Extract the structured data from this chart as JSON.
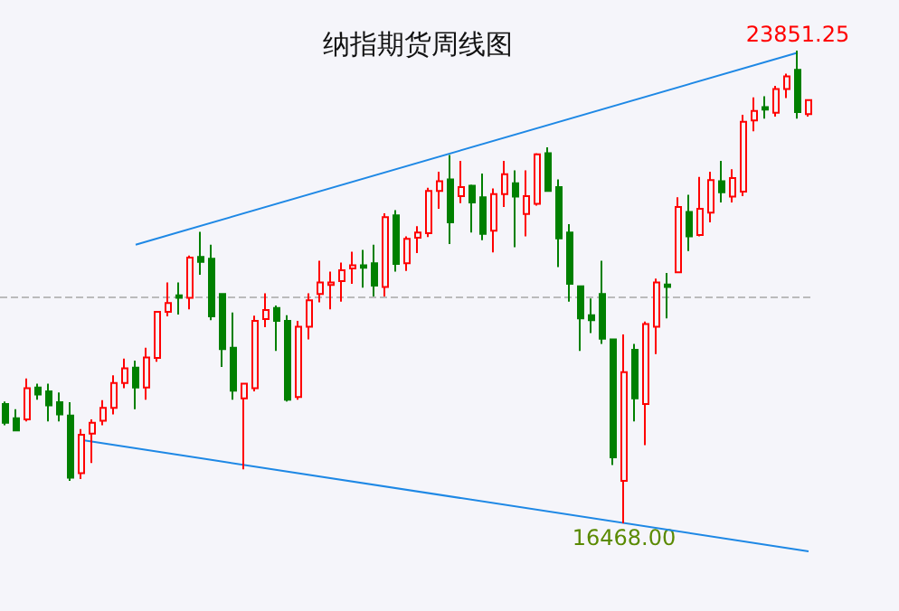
{
  "chart_data": {
    "type": "candlestick",
    "title": "纳指期货周线图",
    "categories": [
      null,
      null,
      null,
      null,
      null,
      null,
      null,
      null,
      null,
      null,
      null,
      null,
      null,
      null,
      null,
      null,
      null,
      null,
      null,
      null,
      null,
      null,
      null,
      null,
      null,
      null,
      null,
      null,
      null,
      null,
      null,
      null,
      null,
      null,
      null,
      null,
      null,
      null,
      null,
      null,
      null,
      null,
      null,
      null,
      null,
      null,
      null,
      null,
      null,
      null,
      null,
      null,
      null,
      null,
      null,
      null,
      null,
      null,
      null,
      null,
      null,
      null,
      null,
      null,
      null,
      null,
      null,
      null,
      null,
      null,
      null,
      null,
      null,
      null,
      null
    ],
    "ohlc": [
      [
        18330,
        18370,
        18000,
        18040
      ],
      [
        18110,
        18250,
        17920,
        17920
      ],
      [
        18090,
        18730,
        18060,
        18580
      ],
      [
        18590,
        18650,
        18400,
        18480
      ],
      [
        18530,
        18650,
        18060,
        18310
      ],
      [
        18360,
        18510,
        18060,
        18170
      ],
      [
        18150,
        18360,
        17130,
        17180
      ],
      [
        17250,
        17940,
        17160,
        17850
      ],
      [
        17870,
        18090,
        17410,
        18040
      ],
      [
        18070,
        18390,
        18000,
        18270
      ],
      [
        18270,
        18780,
        18170,
        18660
      ],
      [
        18660,
        19040,
        18580,
        18890
      ],
      [
        18900,
        19010,
        18250,
        18590
      ],
      [
        18590,
        19210,
        18400,
        19060
      ],
      [
        19050,
        19770,
        18990,
        19770
      ],
      [
        19770,
        20230,
        19700,
        19910
      ],
      [
        20030,
        20230,
        19730,
        19990
      ],
      [
        19990,
        20650,
        19810,
        20620
      ],
      [
        20630,
        21020,
        20350,
        20550
      ],
      [
        20600,
        20820,
        19640,
        19700
      ],
      [
        20050,
        20050,
        18910,
        19190
      ],
      [
        19210,
        19760,
        18400,
        18540
      ],
      [
        18420,
        18650,
        17310,
        18650
      ],
      [
        18580,
        19710,
        18530,
        19630
      ],
      [
        19660,
        20060,
        19530,
        19800
      ],
      [
        19830,
        19870,
        19160,
        19630
      ],
      [
        19630,
        19720,
        18370,
        18400
      ],
      [
        18440,
        19630,
        18400,
        19540
      ],
      [
        19540,
        20060,
        19340,
        19950
      ],
      [
        20050,
        20570,
        19920,
        20230
      ],
      [
        20190,
        20400,
        19810,
        20230
      ],
      [
        20250,
        20540,
        19930,
        20420
      ],
      [
        20450,
        20710,
        20210,
        20500
      ],
      [
        20500,
        20740,
        20150,
        20460
      ],
      [
        20530,
        20820,
        20010,
        20180
      ],
      [
        20160,
        21310,
        20010,
        21250
      ],
      [
        21280,
        21360,
        20400,
        20520
      ],
      [
        20530,
        20950,
        20410,
        20910
      ],
      [
        20930,
        21110,
        20690,
        21010
      ],
      [
        21000,
        21710,
        20940,
        21660
      ],
      [
        21660,
        21960,
        21380,
        21810
      ],
      [
        21840,
        22220,
        20830,
        21170
      ],
      [
        21580,
        22130,
        21470,
        21720
      ],
      [
        21740,
        21760,
        21010,
        21480
      ],
      [
        21560,
        21930,
        20890,
        20990
      ],
      [
        21040,
        21700,
        20700,
        21610
      ],
      [
        21610,
        22130,
        21410,
        21920
      ],
      [
        21780,
        21980,
        20780,
        21570
      ],
      [
        21300,
        21980,
        20950,
        21580
      ],
      [
        21460,
        22250,
        21430,
        22230
      ],
      [
        22250,
        22340,
        21660,
        21660
      ],
      [
        21720,
        21840,
        20470,
        20920
      ],
      [
        21010,
        21140,
        19930,
        20210
      ],
      [
        20170,
        20170,
        19160,
        19670
      ],
      [
        19720,
        19980,
        19440,
        19640
      ],
      [
        20050,
        20570,
        19270,
        19350
      ],
      [
        19340,
        19340,
        17380,
        17500
      ],
      [
        17130,
        19420,
        16468,
        18830
      ],
      [
        19180,
        19270,
        18060,
        18420
      ],
      [
        18330,
        19620,
        17690,
        19580
      ],
      [
        19540,
        20290,
        19110,
        20230
      ],
      [
        20200,
        20380,
        19670,
        20160
      ],
      [
        20390,
        21560,
        20390,
        21410
      ],
      [
        21330,
        21600,
        20720,
        20950
      ],
      [
        20970,
        21880,
        20950,
        21380
      ],
      [
        21320,
        21960,
        21170,
        21830
      ],
      [
        21810,
        22130,
        21480,
        21640
      ],
      [
        21570,
        22000,
        21480,
        21860
      ],
      [
        21650,
        22850,
        21580,
        22740
      ],
      [
        22760,
        23120,
        22590,
        22910
      ],
      [
        22970,
        23140,
        22790,
        22930
      ],
      [
        22880,
        23300,
        22820,
        23250
      ],
      [
        23250,
        23490,
        23110,
        23450
      ],
      [
        23550,
        23851.25,
        22790,
        22890
      ],
      [
        22860,
        23080,
        22820,
        23080
      ]
    ],
    "colors": [
      "#008000",
      "#008000",
      "#ff0000",
      "#008000",
      "#008000",
      "#008000",
      "#008000",
      "#ff0000",
      "#ff0000",
      "#ff0000",
      "#ff0000",
      "#ff0000",
      "#008000",
      "#ff0000",
      "#ff0000",
      "#ff0000",
      "#008000",
      "#ff0000",
      "#008000",
      "#008000",
      "#008000",
      "#008000",
      "#ff0000",
      "#ff0000",
      "#ff0000",
      "#008000",
      "#008000",
      "#ff0000",
      "#ff0000",
      "#ff0000",
      "#ff0000",
      "#ff0000",
      "#ff0000",
      "#008000",
      "#008000",
      "#ff0000",
      "#008000",
      "#ff0000",
      "#ff0000",
      "#ff0000",
      "#ff0000",
      "#008000",
      "#ff0000",
      "#008000",
      "#008000",
      "#ff0000",
      "#ff0000",
      "#008000",
      "#ff0000",
      "#ff0000",
      "#008000",
      "#008000",
      "#008000",
      "#008000",
      "#008000",
      "#008000",
      "#008000",
      "#ff0000",
      "#008000",
      "#ff0000",
      "#ff0000",
      "#008000",
      "#ff0000",
      "#008000",
      "#ff0000",
      "#ff0000",
      "#008000",
      "#ff0000",
      "#ff0000",
      "#ff0000",
      "#008000",
      "#ff0000",
      "#ff0000",
      "#008000",
      "#ff0000"
    ],
    "series": [
      {
        "type": "line",
        "color": "#1e88e5",
        "values": [
          null,
          null,
          null,
          null,
          null,
          null,
          null,
          null,
          null,
          null,
          null,
          null,
          20820,
          null,
          null,
          null,
          null,
          null,
          null,
          null,
          null,
          null,
          null,
          null,
          null,
          null,
          null,
          null,
          null,
          null,
          null,
          null,
          null,
          null,
          null,
          null,
          null,
          null,
          null,
          null,
          null,
          null,
          null,
          null,
          null,
          null,
          null,
          null,
          null,
          null,
          null,
          null,
          null,
          null,
          null,
          null,
          null,
          null,
          null,
          null,
          null,
          null,
          null,
          null,
          null,
          null,
          null,
          null,
          null,
          null,
          null,
          null,
          null,
          23820,
          null
        ]
      },
      {
        "type": "line",
        "color": "#1e88e5",
        "values": [
          null,
          null,
          null,
          null,
          null,
          null,
          null,
          17770,
          null,
          null,
          null,
          null,
          null,
          null,
          null,
          null,
          null,
          null,
          null,
          null,
          null,
          null,
          null,
          null,
          null,
          null,
          null,
          null,
          null,
          null,
          null,
          null,
          null,
          null,
          null,
          null,
          null,
          null,
          null,
          null,
          null,
          null,
          null,
          null,
          null,
          null,
          null,
          null,
          null,
          null,
          null,
          null,
          null,
          null,
          null,
          null,
          null,
          null,
          null,
          null,
          null,
          null,
          null,
          null,
          null,
          null,
          null,
          null,
          null,
          null,
          null,
          null,
          null,
          null,
          16030
        ]
      }
    ],
    "ref_lines": [
      {
        "axis": "y",
        "value": 20000,
        "color": "#bbbbbb",
        "line_style": "dashed"
      }
    ],
    "annotations": [
      {
        "text": "23851.25",
        "y": 23851.25
      },
      {
        "text": "16468.00",
        "y": 16468
      }
    ],
    "tick_labels": false
  }
}
